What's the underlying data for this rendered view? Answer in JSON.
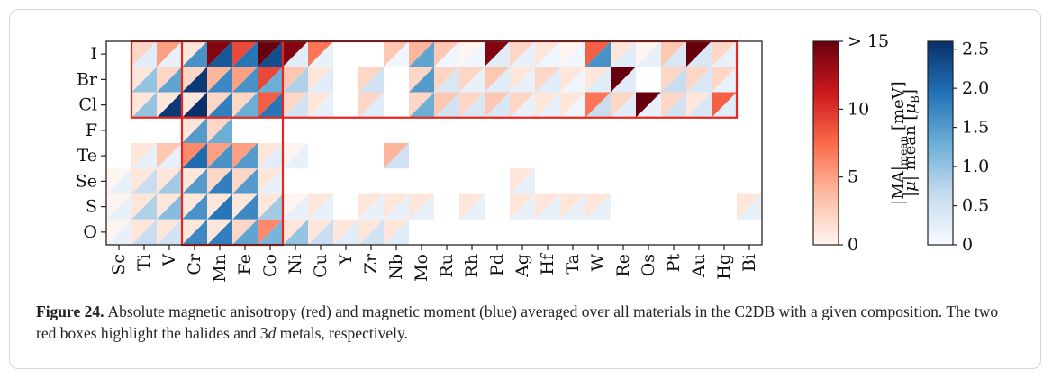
{
  "chart_data": {
    "type": "heatmap",
    "x_elements": [
      "Sc",
      "Ti",
      "V",
      "Cr",
      "Mn",
      "Fe",
      "Co",
      "Ni",
      "Cu",
      "Y",
      "Zr",
      "Nb",
      "Mo",
      "Ru",
      "Rh",
      "Pd",
      "Ag",
      "Hf",
      "Ta",
      "W",
      "Re",
      "Os",
      "Pt",
      "Au",
      "Hg",
      "Bi"
    ],
    "y_elements": [
      "I",
      "Br",
      "Cl",
      "F",
      "Te",
      "Se",
      "S",
      "O"
    ],
    "cell_encoding": "upper-left triangle = |MA|mean (red scale); lower-right triangle = |mu| mean (blue scale)",
    "ma_mean_meV": [
      [
        null,
        2,
        5,
        1,
        14,
        9,
        15,
        14,
        7,
        null,
        null,
        3,
        4,
        3,
        0,
        14,
        2,
        1,
        0,
        8,
        1,
        0,
        3,
        15,
        2,
        null
      ],
      [
        null,
        1,
        2,
        2,
        4,
        5,
        9,
        3,
        1,
        null,
        2,
        null,
        2,
        2,
        2,
        3,
        1,
        2,
        1,
        1,
        15,
        null,
        2,
        2,
        2,
        null
      ],
      [
        null,
        1,
        1,
        1,
        2,
        2,
        8,
        2,
        1,
        null,
        2,
        null,
        2,
        3,
        2,
        3,
        2,
        1,
        1,
        7,
        2,
        15,
        2,
        1,
        8,
        null
      ],
      [
        null,
        null,
        null,
        1,
        2,
        null,
        null,
        null,
        null,
        null,
        null,
        null,
        null,
        null,
        null,
        null,
        null,
        null,
        null,
        null,
        null,
        null,
        null,
        null,
        null,
        null
      ],
      [
        null,
        1,
        3,
        6,
        5,
        5,
        1,
        0,
        null,
        null,
        null,
        4,
        null,
        null,
        null,
        null,
        null,
        null,
        null,
        null,
        null,
        null,
        null,
        null,
        null,
        null
      ],
      [
        0,
        1,
        1,
        1,
        2,
        2,
        1,
        null,
        null,
        null,
        null,
        null,
        null,
        null,
        null,
        null,
        1,
        null,
        null,
        null,
        null,
        null,
        null,
        null,
        null,
        null
      ],
      [
        0,
        1,
        1,
        1,
        1,
        1,
        1,
        0,
        1,
        null,
        1,
        1,
        1,
        null,
        1,
        null,
        1,
        1,
        1,
        1,
        null,
        null,
        null,
        null,
        null,
        1
      ],
      [
        0,
        1,
        1,
        1,
        1,
        2,
        6,
        1,
        1,
        1,
        1,
        1,
        null,
        null,
        null,
        null,
        null,
        null,
        null,
        null,
        null,
        null,
        null,
        null,
        null,
        null
      ]
    ],
    "mu_mean_muB": [
      [
        null,
        0.3,
        0.2,
        1.6,
        2.2,
        1.9,
        2.3,
        0.3,
        0.2,
        null,
        null,
        0.1,
        1.4,
        0.1,
        0.1,
        0.3,
        0.2,
        0.1,
        0.1,
        1.6,
        0.3,
        0.2,
        0.4,
        0.4,
        0.2,
        null
      ],
      [
        null,
        1.0,
        1.4,
        2.5,
        1.7,
        1.6,
        1.3,
        0.8,
        0.3,
        null,
        0.5,
        null,
        1.5,
        0.4,
        0.2,
        0.3,
        0.2,
        0.3,
        0.1,
        0.3,
        0.3,
        null,
        0.6,
        0.4,
        0.2,
        null
      ],
      [
        null,
        1.0,
        2.5,
        2.6,
        1.8,
        1.3,
        1.9,
        0.5,
        0.2,
        null,
        0.3,
        null,
        1.3,
        0.5,
        0.4,
        0.4,
        0.2,
        0.2,
        0.1,
        0.6,
        0.3,
        0.2,
        0.5,
        0.4,
        0.3,
        null
      ],
      [
        null,
        null,
        null,
        1.5,
        1.3,
        null,
        null,
        null,
        null,
        null,
        null,
        null,
        null,
        null,
        null,
        null,
        null,
        null,
        null,
        null,
        null,
        null,
        null,
        null,
        null,
        null
      ],
      [
        null,
        0.2,
        0.2,
        2.0,
        1.6,
        1.5,
        0.3,
        0.2,
        null,
        null,
        null,
        0.5,
        null,
        null,
        null,
        null,
        null,
        null,
        null,
        null,
        null,
        null,
        null,
        null,
        null,
        null
      ],
      [
        0.2,
        0.6,
        0.9,
        1.5,
        1.8,
        1.5,
        0.2,
        null,
        null,
        null,
        null,
        null,
        null,
        null,
        null,
        null,
        0.2,
        null,
        null,
        null,
        null,
        null,
        null,
        null,
        null,
        null
      ],
      [
        0.2,
        0.8,
        1.1,
        1.6,
        1.9,
        1.7,
        0.9,
        0.2,
        0.2,
        null,
        0.2,
        0.2,
        0.2,
        null,
        0.2,
        null,
        0.2,
        0.2,
        0.2,
        0.2,
        null,
        null,
        null,
        null,
        null,
        0.2
      ],
      [
        0.2,
        0.6,
        0.5,
        1.7,
        1.8,
        1.4,
        1.2,
        1.0,
        0.6,
        0.3,
        0.5,
        0.3,
        null,
        null,
        null,
        null,
        null,
        null,
        null,
        null,
        null,
        null,
        null,
        null,
        null,
        null
      ]
    ],
    "boxes": [
      {
        "x_from": "Ti",
        "x_to": "Hg",
        "y_from": "I",
        "y_to": "Cl"
      },
      {
        "x_from": "Cr",
        "x_to": "Co",
        "y_from": "I",
        "y_to": "O"
      }
    ],
    "colorbar_ma": {
      "label": "|MA|mean [meV]",
      "range": [
        0,
        15
      ],
      "ticks": [
        "0",
        "5",
        "10",
        "> 15"
      ]
    },
    "colorbar_mu": {
      "label": "|μ| mean [μB]",
      "range": [
        0,
        2.6
      ],
      "ticks": [
        "0",
        "0.5",
        "1.0",
        "1.5",
        "2.0",
        "2.5"
      ]
    }
  },
  "colors": {
    "box": "#e8261d",
    "red_max": "#67000d",
    "blue_max": "#08306b"
  },
  "caption": {
    "label": "Figure 24.",
    "text_before": "Absolute magnetic anisotropy (red) and magnetic moment (blue) averaged over all materials in the C2DB with a given composition. The two red boxes highlight the halides and 3",
    "italic": "d",
    "text_after": " metals, respectively."
  }
}
